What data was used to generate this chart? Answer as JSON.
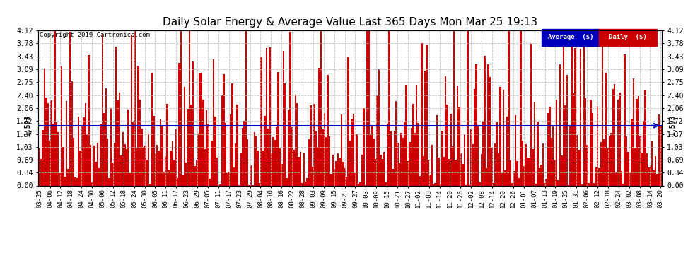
{
  "title": "Daily Solar Energy & Average Value Last 365 Days Mon Mar 25 19:13",
  "copyright": "Copyright 2019 Cartronics.com",
  "average_value": 1.593,
  "average_label": "Average  ($)",
  "daily_label": "Daily  ($)",
  "average_color": "#0000bb",
  "legend_avg_bg": "#0000bb",
  "legend_daily_bg": "#cc0000",
  "yticks": [
    0.0,
    0.34,
    0.69,
    1.03,
    1.37,
    1.72,
    2.06,
    2.4,
    2.75,
    3.09,
    3.43,
    3.78,
    4.12
  ],
  "bar_color": "#cc0000",
  "background_color": "#ffffff",
  "grid_color": "#bbbbbb",
  "figsize": [
    9.9,
    3.75
  ],
  "dpi": 100,
  "xtick_labels": [
    "03-25",
    "04-06",
    "04-12",
    "04-18",
    "04-24",
    "04-30",
    "05-06",
    "05-12",
    "05-18",
    "05-24",
    "05-30",
    "06-05",
    "06-11",
    "06-17",
    "06-23",
    "06-29",
    "07-05",
    "07-11",
    "07-17",
    "07-23",
    "07-29",
    "08-04",
    "08-10",
    "08-16",
    "08-22",
    "08-28",
    "09-03",
    "09-09",
    "09-15",
    "09-21",
    "09-27",
    "10-03",
    "10-09",
    "10-15",
    "10-21",
    "10-27",
    "11-02",
    "11-08",
    "11-14",
    "11-20",
    "11-26",
    "12-02",
    "12-08",
    "12-14",
    "12-20",
    "12-26",
    "01-01",
    "01-07",
    "01-13",
    "01-19",
    "01-25",
    "01-31",
    "02-06",
    "02-12",
    "02-18",
    "02-24",
    "03-02",
    "03-08",
    "03-14",
    "03-20"
  ]
}
